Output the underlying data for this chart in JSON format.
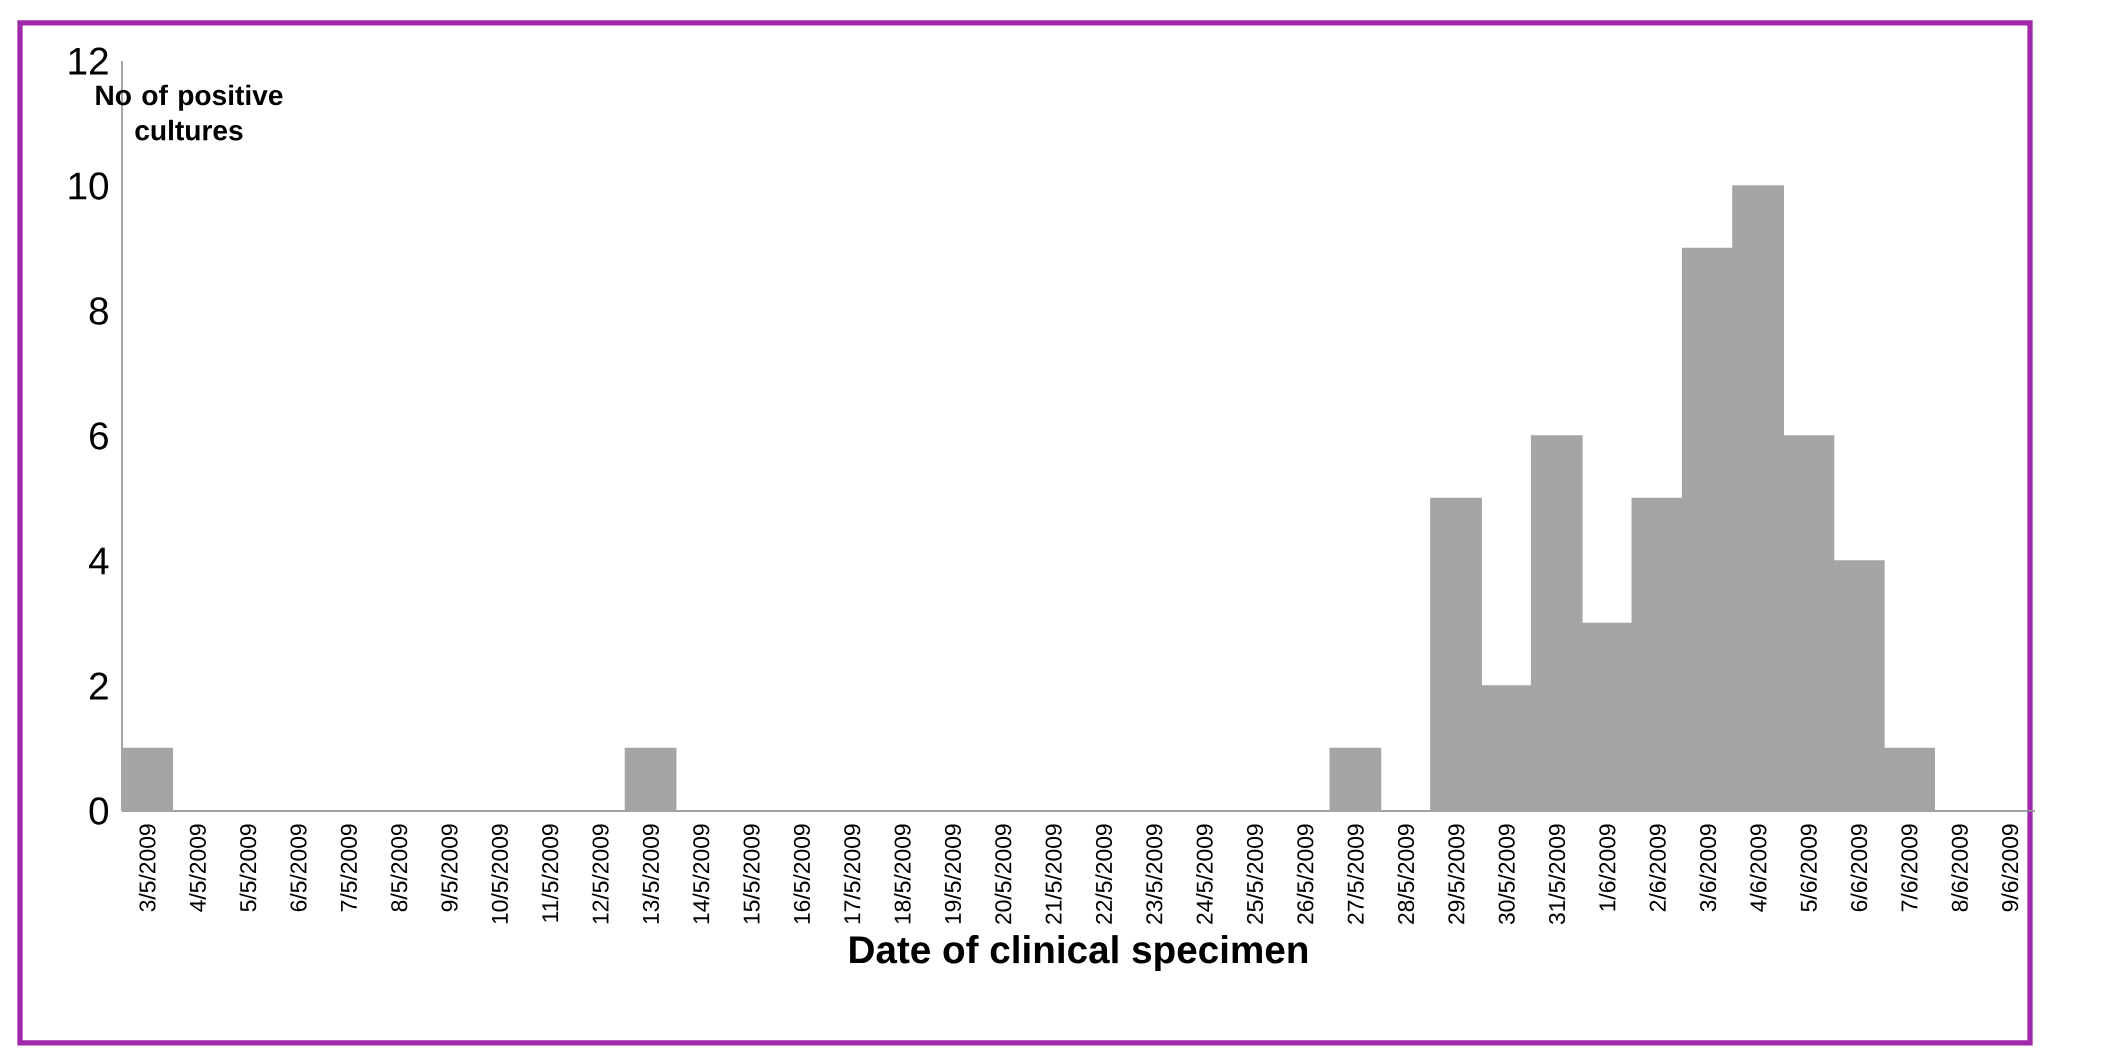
{
  "chart_data": {
    "type": "bar",
    "xlabel": "Date of clinical specimen",
    "ylabel": "No of positive cultures",
    "categories": [
      "3/5/2009",
      "4/5/2009",
      "5/5/2009",
      "6/5/2009",
      "7/5/2009",
      "8/5/2009",
      "9/5/2009",
      "10/5/2009",
      "11/5/2009",
      "12/5/2009",
      "13/5/2009",
      "14/5/2009",
      "15/5/2009",
      "16/5/2009",
      "17/5/2009",
      "18/5/2009",
      "19/5/2009",
      "20/5/2009",
      "21/5/2009",
      "22/5/2009",
      "23/5/2009",
      "24/5/2009",
      "25/5/2009",
      "26/5/2009",
      "27/5/2009",
      "28/5/2009",
      "29/5/2009",
      "30/5/2009",
      "31/5/2009",
      "1/6/2009",
      "2/6/2009",
      "3/6/2009",
      "4/6/2009",
      "5/6/2009",
      "6/6/2009",
      "7/6/2009",
      "8/6/2009",
      "9/6/2009"
    ],
    "values": [
      1,
      0,
      0,
      0,
      0,
      0,
      0,
      0,
      0,
      0,
      1,
      0,
      0,
      0,
      0,
      0,
      0,
      0,
      0,
      0,
      0,
      0,
      0,
      0,
      1,
      0,
      5,
      2,
      6,
      3,
      5,
      9,
      10,
      6,
      4,
      1,
      0,
      0
    ],
    "color": "#a5a5a5",
    "ylim": [
      0,
      12
    ],
    "yticks": [
      0,
      2,
      4,
      6,
      8,
      10,
      12
    ]
  }
}
